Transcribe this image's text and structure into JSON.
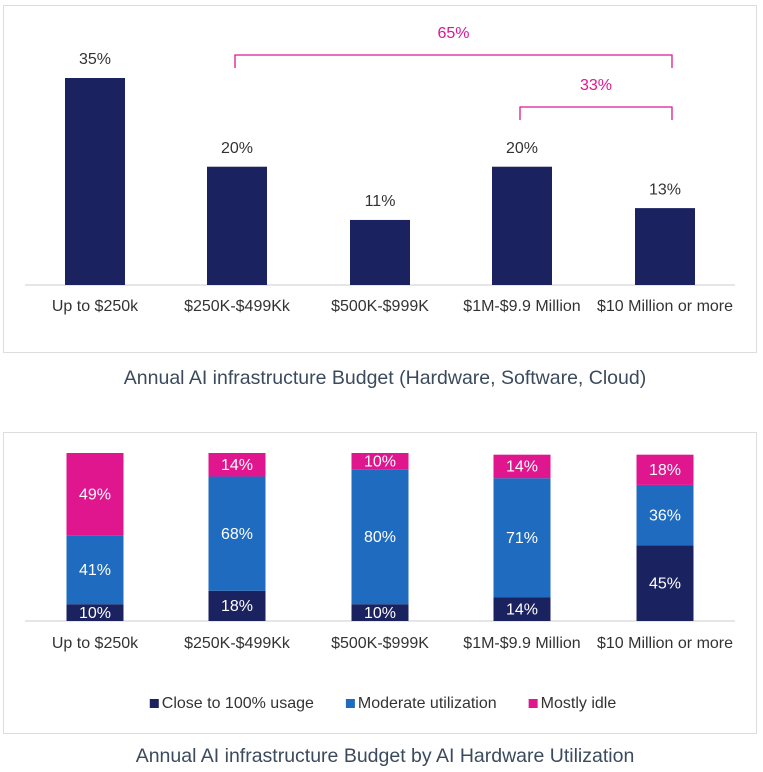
{
  "chart_data": [
    {
      "type": "bar",
      "title": "Annual AI infrastructure Budget (Hardware, Software, Cloud)",
      "categories": [
        "Up to $250k",
        "$250K-$499Kk",
        "$500K-$999K",
        "$1M-$9.9 Million",
        "$10 Million or more"
      ],
      "values": [
        35,
        20,
        11,
        20,
        13
      ],
      "value_labels": [
        "35%",
        "20%",
        "11%",
        "20%",
        "13%"
      ],
      "color": "#1b2260",
      "annotations": [
        {
          "text": "65%",
          "start": "$250K-$499Kk",
          "end": "$10 Million or more",
          "color": "#e0168f"
        },
        {
          "text": "33%",
          "start": "$1M-$9.9 Million",
          "end": "$10 Million or more",
          "color": "#e0168f"
        }
      ]
    },
    {
      "type": "stacked_bar",
      "title": "Annual AI infrastructure Budget by AI Hardware Utilization",
      "categories": [
        "Up to $250k",
        "$250K-$499Kk",
        "$500K-$999K",
        "$1M-$9.9 Million",
        "$10 Million or more"
      ],
      "series": [
        {
          "name": "Close to 100% usage",
          "color": "#1b2260",
          "values": [
            10,
            18,
            10,
            14,
            45
          ],
          "value_labels": [
            "10%",
            "18%",
            "10%",
            "14%",
            "45%"
          ]
        },
        {
          "name": "Moderate utilization",
          "color": "#1f6bbf",
          "values": [
            41,
            68,
            80,
            71,
            36
          ],
          "value_labels": [
            "41%",
            "68%",
            "80%",
            "71%",
            "36%"
          ]
        },
        {
          "name": "Mostly idle",
          "color": "#e0168f",
          "values": [
            49,
            14,
            10,
            14,
            18
          ],
          "value_labels": [
            "49%",
            "14%",
            "10%",
            "14%",
            "18%"
          ]
        }
      ],
      "legend": "bottom"
    }
  ]
}
